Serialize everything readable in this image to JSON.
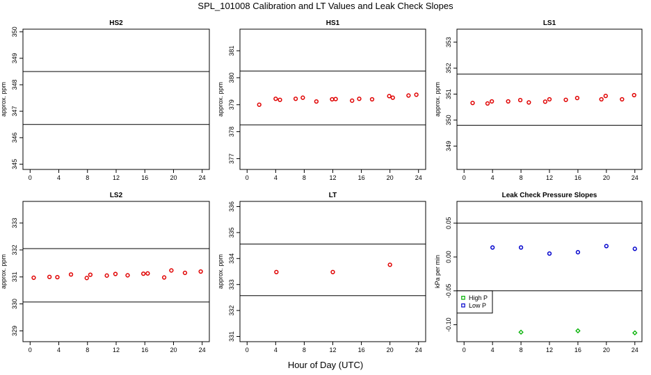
{
  "title": "SPL_101008  Calibration and LT Values and Leak Check Slopes",
  "xlabel": "Hour of Day (UTC)",
  "colors": {
    "red": "#e00000",
    "green": "#00b000",
    "blue": "#0000cc",
    "black": "#000000"
  },
  "chart_data": [
    {
      "type": "scatter",
      "title": "HS2",
      "ylabel": "approx. ppm",
      "xlim": [
        -1,
        25
      ],
      "ylim": [
        344.8,
        350.1
      ],
      "xticks": [
        0,
        4,
        8,
        12,
        16,
        20,
        24
      ],
      "yticks": [
        345,
        346,
        347,
        348,
        349,
        350
      ],
      "hlines": [
        346.5,
        348.5
      ],
      "series": [
        {
          "color": "#e00000",
          "x": [],
          "y": []
        }
      ]
    },
    {
      "type": "scatter",
      "title": "HS1",
      "ylabel": "approx. ppm",
      "xlim": [
        -1,
        25
      ],
      "ylim": [
        376.6,
        381.8
      ],
      "xticks": [
        0,
        4,
        8,
        12,
        16,
        20,
        24
      ],
      "yticks": [
        377,
        378,
        379,
        380,
        381
      ],
      "hlines": [
        378.25,
        380.25
      ],
      "series": [
        {
          "color": "#e00000",
          "x": [
            1.7,
            4.0,
            4.6,
            6.8,
            7.8,
            9.7,
            11.9,
            12.4,
            14.7,
            15.7,
            17.5,
            19.9,
            20.4,
            22.6,
            23.7
          ],
          "y": [
            379.0,
            379.22,
            379.18,
            379.22,
            379.26,
            379.12,
            379.2,
            379.21,
            379.15,
            379.22,
            379.2,
            379.32,
            379.26,
            379.34,
            379.37
          ]
        }
      ]
    },
    {
      "type": "scatter",
      "title": "LS1",
      "ylabel": "approx. ppm",
      "xlim": [
        -1,
        25
      ],
      "ylim": [
        348.1,
        353.5
      ],
      "xticks": [
        0,
        4,
        8,
        12,
        16,
        20,
        24
      ],
      "yticks": [
        349,
        350,
        351,
        352,
        353
      ],
      "hlines": [
        349.8,
        351.77
      ],
      "series": [
        {
          "color": "#e00000",
          "x": [
            1.2,
            3.3,
            3.9,
            6.2,
            7.9,
            9.1,
            11.4,
            12.0,
            14.3,
            15.9,
            19.3,
            19.9,
            22.2,
            23.9
          ],
          "y": [
            350.66,
            350.64,
            350.72,
            350.72,
            350.77,
            350.68,
            350.71,
            350.8,
            350.78,
            350.85,
            350.8,
            350.93,
            350.8,
            350.96
          ]
        }
      ]
    },
    {
      "type": "scatter",
      "title": "LS2",
      "ylabel": "approx. ppm",
      "xlim": [
        -1,
        25
      ],
      "ylim": [
        328.6,
        333.8
      ],
      "xticks": [
        0,
        4,
        8,
        12,
        16,
        20,
        24
      ],
      "yticks": [
        329,
        330,
        331,
        332,
        333
      ],
      "hlines": [
        330.07,
        332.05
      ],
      "series": [
        {
          "color": "#e00000",
          "x": [
            0.5,
            2.7,
            3.8,
            5.7,
            7.9,
            8.4,
            10.7,
            11.9,
            13.6,
            15.8,
            16.4,
            18.7,
            19.7,
            21.6,
            23.8
          ],
          "y": [
            330.97,
            331.0,
            330.99,
            331.09,
            330.96,
            331.08,
            331.05,
            331.11,
            331.06,
            331.12,
            331.13,
            330.98,
            331.24,
            331.15,
            331.2
          ]
        }
      ]
    },
    {
      "type": "scatter",
      "title": "LT",
      "ylabel": "approx. ppm",
      "xlim": [
        -1,
        25
      ],
      "ylim": [
        330.8,
        336.2
      ],
      "xticks": [
        0,
        4,
        8,
        12,
        16,
        20,
        24
      ],
      "yticks": [
        331,
        332,
        333,
        334,
        335,
        336
      ],
      "hlines": [
        332.57,
        334.56
      ],
      "series": [
        {
          "color": "#e00000",
          "x": [
            4.1,
            12.0,
            20.0
          ],
          "y": [
            333.48,
            333.48,
            333.76
          ]
        }
      ]
    },
    {
      "type": "scatter",
      "title": "Leak Check Pressure Slopes",
      "ylabel": "kPa per min",
      "xlim": [
        -1,
        25
      ],
      "ylim": [
        -0.125,
        0.082
      ],
      "xticks": [
        0,
        4,
        8,
        12,
        16,
        20,
        24
      ],
      "yticks": [
        -0.1,
        -0.05,
        0.0,
        0.05
      ],
      "yticklabels": [
        "-0.10",
        "-0.05",
        "0.00",
        "0.05"
      ],
      "hlines": [
        -0.05,
        0.05
      ],
      "legend": {
        "placement": "bottom-left",
        "entries": [
          "High P",
          "Low P"
        ]
      },
      "series": [
        {
          "name": "High P",
          "color": "#00b000",
          "marker": "diamond",
          "x": [
            8.0,
            16.0,
            24.0
          ],
          "y": [
            -0.111,
            -0.109,
            -0.112
          ]
        },
        {
          "name": "Low P",
          "color": "#0000cc",
          "marker": "circle",
          "x": [
            4.0,
            8.0,
            12.0,
            16.0,
            20.0,
            24.0
          ],
          "y": [
            0.014,
            0.014,
            0.005,
            0.007,
            0.016,
            0.012
          ]
        }
      ]
    }
  ]
}
